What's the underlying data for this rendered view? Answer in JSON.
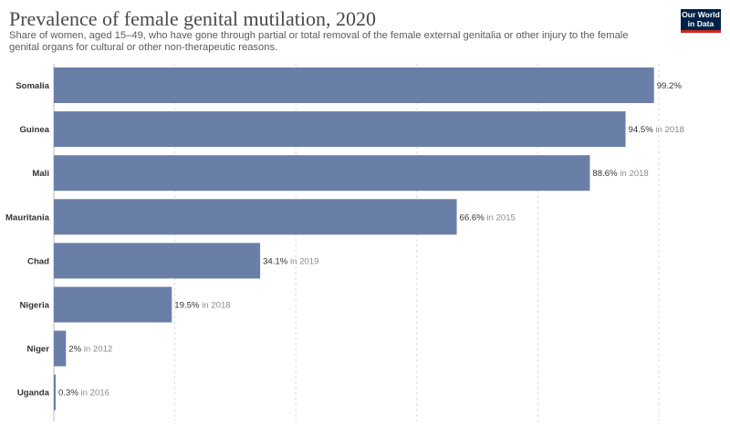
{
  "header": {
    "title": "Prevalence of female genital mutilation, 2020",
    "subtitle": "Share of women, aged 15–49, who have gone through partial or total removal of the female external genitalia or other injury to the female genital organs for cultural or other non-therapeutic reasons."
  },
  "logo": {
    "line1": "Our World",
    "line2": "in Data"
  },
  "colors": {
    "bar": "#6a7fa8",
    "grid": "#dddddd"
  },
  "chart_data": {
    "type": "bar",
    "orientation": "horizontal",
    "title": "Prevalence of female genital mutilation, 2020",
    "xlim": [
      0,
      100
    ],
    "grid": true,
    "categories": [
      "Somalia",
      "Guinea",
      "Mali",
      "Mauritania",
      "Chad",
      "Nigeria",
      "Niger",
      "Uganda"
    ],
    "values": [
      99.2,
      94.5,
      88.6,
      66.6,
      34.1,
      19.5,
      2,
      0.3
    ],
    "value_labels": [
      "99.2%",
      "94.5%",
      "88.6%",
      "66.6%",
      "34.1%",
      "19.5%",
      "2%",
      "0.3%"
    ],
    "year_notes": [
      "",
      "in 2018",
      "in 2018",
      "in 2015",
      "in 2019",
      "in 2018",
      "in 2012",
      "in 2016"
    ]
  }
}
